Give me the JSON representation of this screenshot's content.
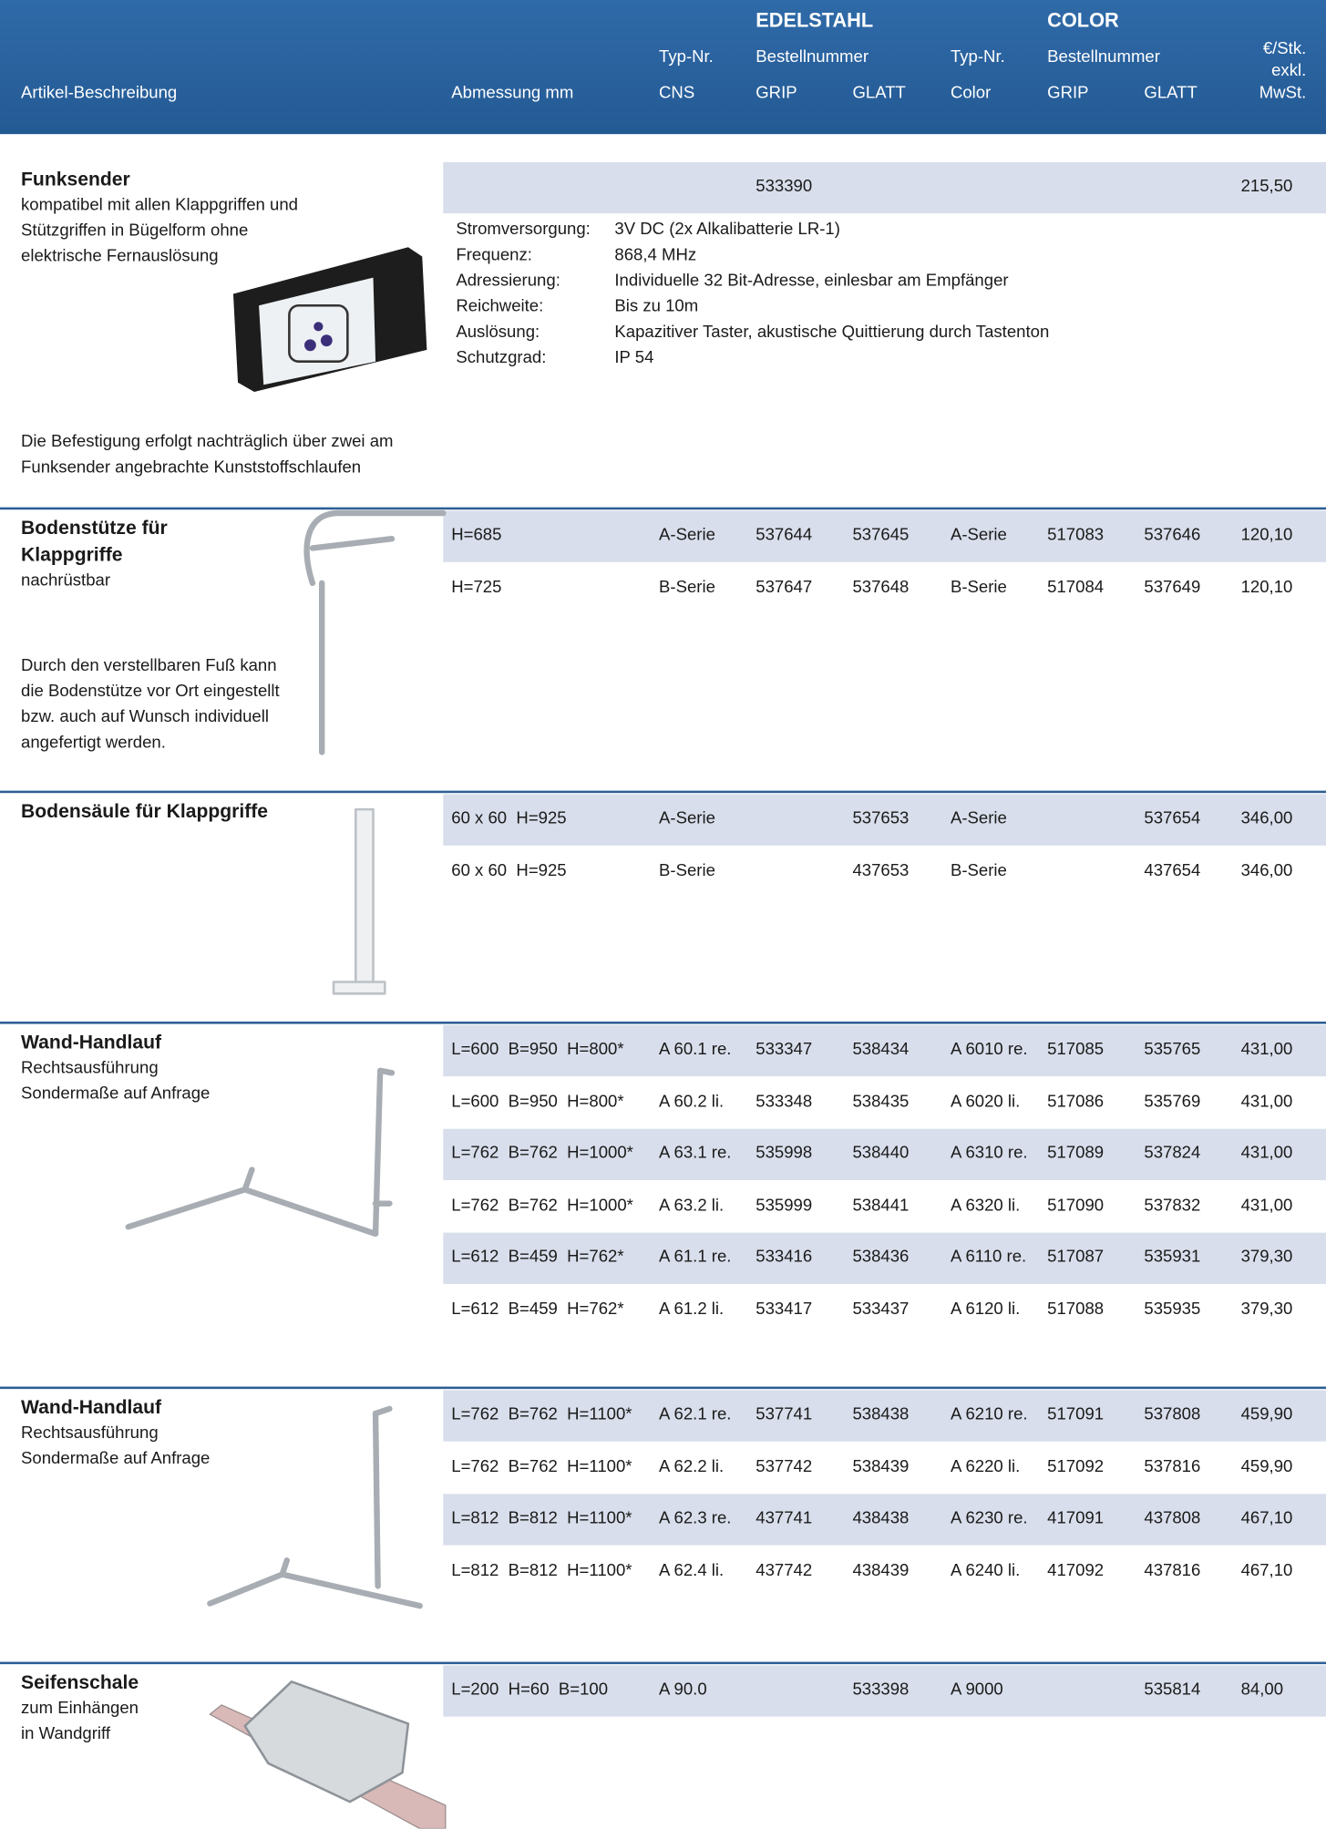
{
  "header": {
    "groups": [
      "EDELSTAHL",
      "COLOR"
    ],
    "line1": [
      "Typ-Nr.",
      "Bestellnummer",
      "Typ-Nr.",
      "Bestellnummer"
    ],
    "line2": [
      "Artikel-Beschreibung",
      "Abmessung mm",
      "CNS",
      "GRIP",
      "GLATT",
      "Color",
      "GRIP",
      "GLATT"
    ],
    "price": [
      "€/Stk.",
      "exkl.",
      "MwSt."
    ]
  },
  "sections": [
    {
      "title": [
        "Funksender"
      ],
      "subtitle": [
        "kompatibel mit allen Klappgriffen und",
        "Stützgriffen in Bügelform ohne",
        "elektrische Fernauslösung"
      ],
      "rows": [
        [
          null,
          null,
          "533390",
          null,
          null,
          null,
          null,
          "215,50"
        ]
      ],
      "specs": [
        [
          "Stromversorgung:",
          "3V DC (2x Alkalibatterie LR-1)"
        ],
        [
          "Frequenz:",
          "868,4 MHz"
        ],
        [
          "Adressierung:",
          "Individuelle 32 Bit-Adresse, einlesbar am Empfänger"
        ],
        [
          "Reichweite:",
          "Bis zu 10m"
        ],
        [
          "Auslösung:",
          "Kapazitiver Taster, akustische Quittierung durch Tastenton"
        ],
        [
          "Schutzgrad:",
          "IP 54"
        ]
      ],
      "note": [
        "Die Befestigung erfolgt nachträglich über zwei am",
        "Funksender angebrachte Kunststoffschlaufen"
      ]
    },
    {
      "title": [
        "Bodenstütze für",
        "Klappgriffe"
      ],
      "subtitle": [
        "nachrüstbar"
      ],
      "rows": [
        [
          "H=685",
          "A-Serie",
          "537644",
          "537645",
          "A-Serie",
          "517083",
          "537646",
          "120,10"
        ],
        [
          "H=725",
          "B-Serie",
          "537647",
          "537648",
          "B-Serie",
          "517084",
          "537649",
          "120,10"
        ]
      ],
      "note": [
        "Durch den verstellbaren Fuß kann",
        "die Bodenstütze vor Ort eingestellt",
        "bzw. auch auf Wunsch individuell",
        "angefertigt werden."
      ]
    },
    {
      "title": [
        "Bodensäule für Klappgriffe"
      ],
      "rows": [
        [
          "60 x 60  H=925",
          "A-Serie",
          null,
          "537653",
          "A-Serie",
          null,
          "537654",
          "346,00"
        ],
        [
          "60 x 60  H=925",
          "B-Serie",
          null,
          "437653",
          "B-Serie",
          null,
          "437654",
          "346,00"
        ]
      ]
    },
    {
      "title": [
        "Wand-Handlauf"
      ],
      "subtitle": [
        "Rechtsausführung",
        "Sondermaße auf Anfrage"
      ],
      "rows": [
        [
          "L=600  B=950  H=800*",
          "A 60.1 re.",
          "533347",
          "538434",
          "A 6010 re.",
          "517085",
          "535765",
          "431,00"
        ],
        [
          "L=600  B=950  H=800*",
          "A 60.2 li.",
          "533348",
          "538435",
          "A 6020 li.",
          "517086",
          "535769",
          "431,00"
        ],
        [
          "L=762  B=762  H=1000*",
          "A 63.1 re.",
          "535998",
          "538440",
          "A 6310 re.",
          "517089",
          "537824",
          "431,00"
        ],
        [
          "L=762  B=762  H=1000*",
          "A 63.2 li.",
          "535999",
          "538441",
          "A 6320 li.",
          "517090",
          "537832",
          "431,00"
        ],
        [
          "L=612  B=459  H=762*",
          "A 61.1 re.",
          "533416",
          "538436",
          "A 6110 re.",
          "517087",
          "535931",
          "379,30"
        ],
        [
          "L=612  B=459  H=762*",
          "A 61.2 li.",
          "533417",
          "533437",
          "A 6120 li.",
          "517088",
          "535935",
          "379,30"
        ]
      ]
    },
    {
      "title": [
        "Wand-Handlauf"
      ],
      "subtitle": [
        "Rechtsausführung",
        "Sondermaße auf Anfrage"
      ],
      "rows": [
        [
          "L=762  B=762  H=1100*",
          "A 62.1 re.",
          "537741",
          "538438",
          "A 6210 re.",
          "517091",
          "537808",
          "459,90"
        ],
        [
          "L=762  B=762  H=1100*",
          "A 62.2 li.",
          "537742",
          "538439",
          "A 6220 li.",
          "517092",
          "537816",
          "459,90"
        ],
        [
          "L=812  B=812  H=1100*",
          "A 62.3 re.",
          "437741",
          "438438",
          "A 6230 re.",
          "417091",
          "437808",
          "467,10"
        ],
        [
          "L=812  B=812  H=1100*",
          "A 62.4 li.",
          "437742",
          "438439",
          "A 6240 li.",
          "417092",
          "437816",
          "467,10"
        ]
      ]
    },
    {
      "title": [
        "Seifenschale"
      ],
      "subtitle": [
        "zum Einhängen",
        "in Wandgriff"
      ],
      "rows": [
        [
          "L=200  H=60  B=100",
          "A 90.0",
          null,
          "533398",
          "A 9000",
          null,
          "535814",
          "84,00"
        ]
      ]
    }
  ]
}
